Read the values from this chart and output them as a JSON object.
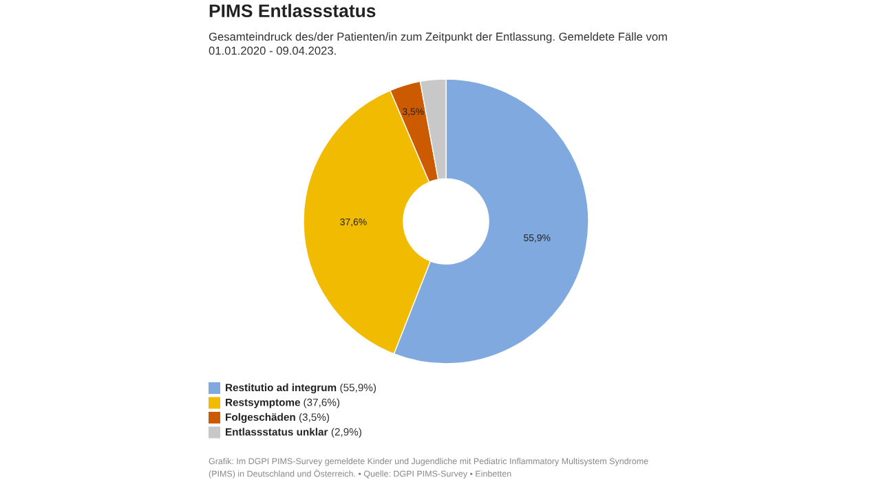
{
  "chart_data": {
    "type": "donut",
    "title": "PIMS Entlassstatus",
    "subtitle": "Gesamteindruck des/der Patienten/in zum Zeitpunkt der Entlassung. Gemeldete Fälle vom 01.01.2020 - 09.04.2023.",
    "categories": [
      "Restitutio ad integrum (55,9%)",
      "Restsymptome (37,6%)",
      "Folgeschäden (3,5%)",
      "Entlassstatus unklar (2,9%)"
    ],
    "values": [
      55.9,
      37.6,
      3.5,
      2.9
    ],
    "value_labels": [
      "55,9%",
      "37,6%",
      "3,5%",
      null
    ],
    "colors": [
      "#80aadf",
      "#f0bb00",
      "#cc5a00",
      "#c8c8c8"
    ],
    "legend": "bottom",
    "annotations": [
      "Grafik: Im DGPI PIMS-Survey gemeldete Kinder und Jugendliche mit Pediatric Inflammatory Multisystem Syndrome (PIMS) in Deutschland und Österreich. • Quelle: DGPI PIMS-Survey • Einbetten"
    ]
  }
}
